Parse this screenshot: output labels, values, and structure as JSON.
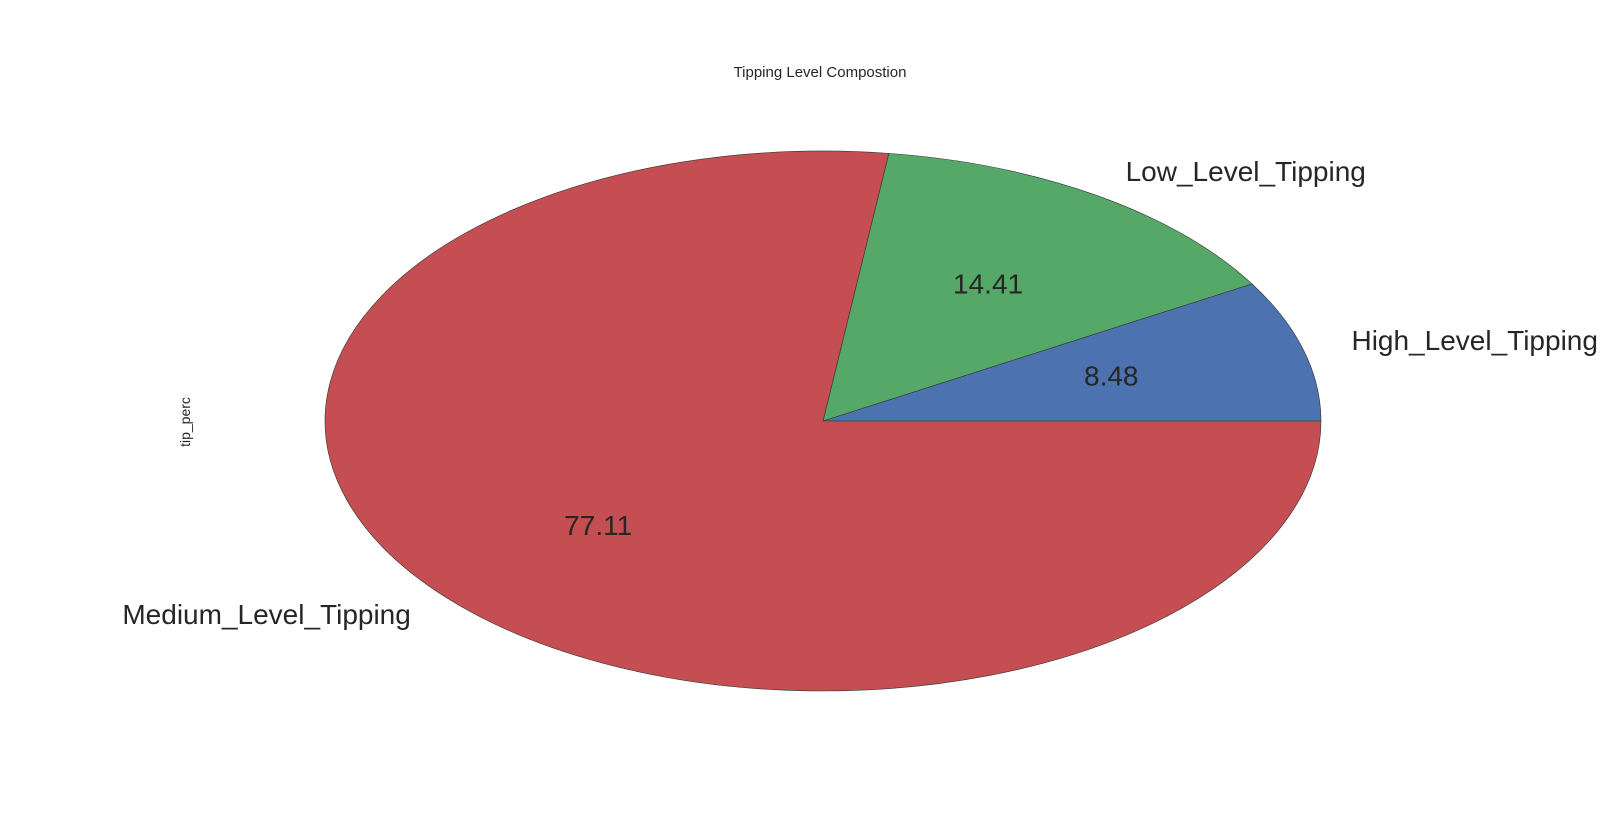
{
  "chart_data": {
    "type": "pie",
    "title": "Tipping Level Compostion",
    "ylabel": "tip_perc",
    "slices": [
      {
        "label": "High_Level_Tipping",
        "value": 8.48,
        "value_label": "8.48",
        "color": "#4c72b0"
      },
      {
        "label": "Low_Level_Tipping",
        "value": 14.41,
        "value_label": "14.41",
        "color": "#55a868"
      },
      {
        "label": "Medium_Level_Tipping",
        "value": 77.11,
        "value_label": "77.11",
        "color": "#c44e52"
      }
    ],
    "start_angle": 0,
    "direction": "counterclockwise"
  }
}
